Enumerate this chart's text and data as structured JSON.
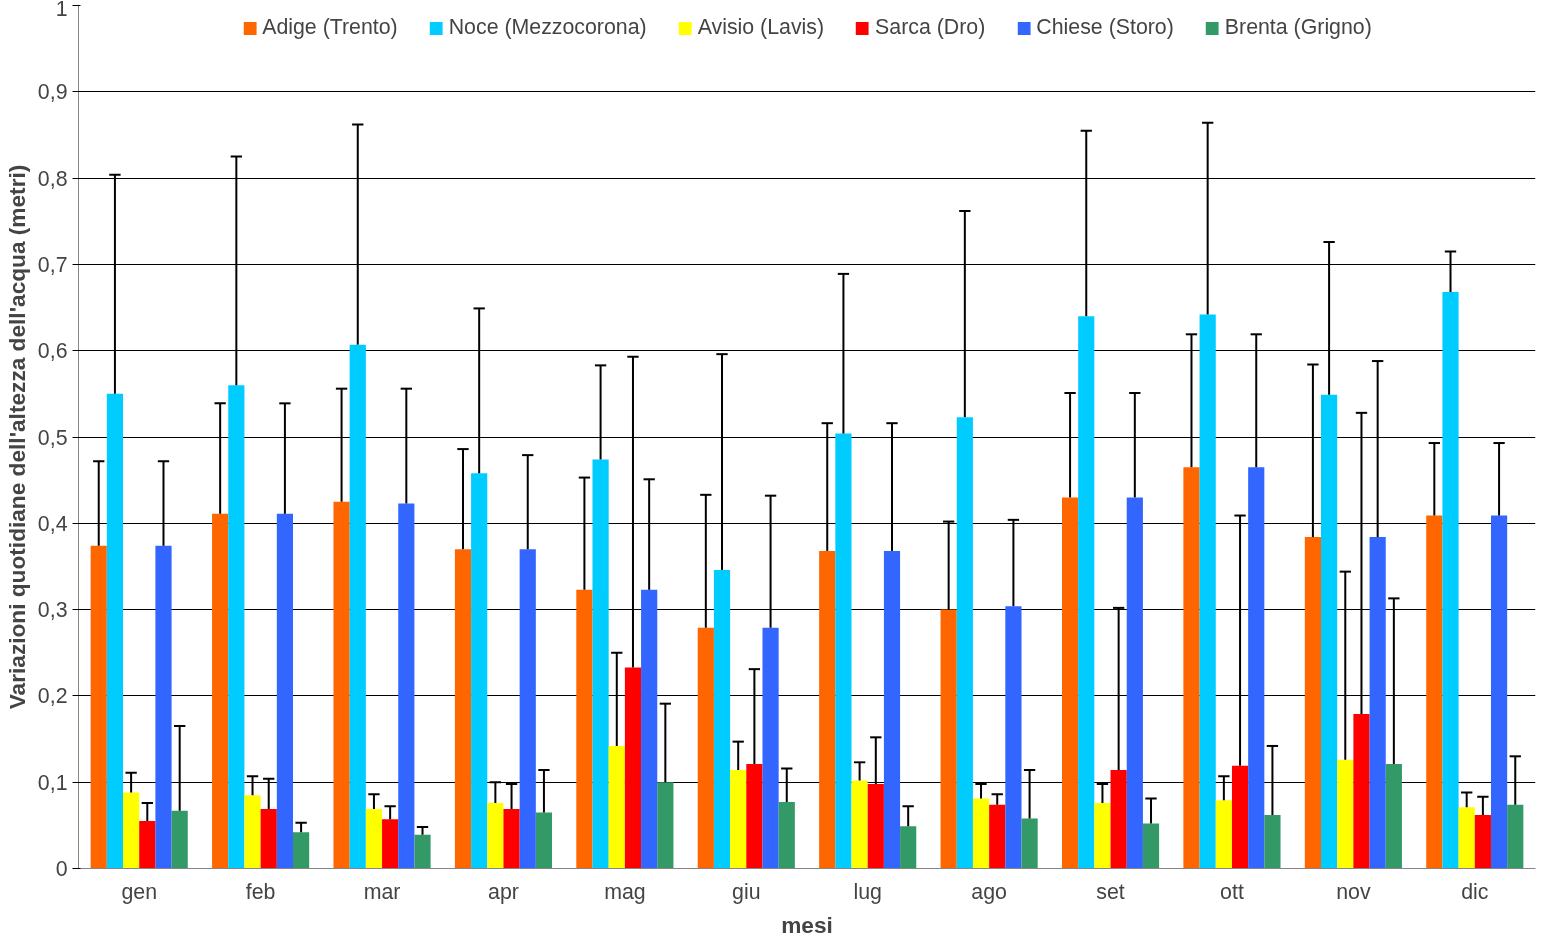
{
  "chart_data": {
    "type": "bar",
    "xlabel": "mesi",
    "ylabel": "Variazioni quotidiane dell'altezza dell'acqua (metri)",
    "categories": [
      "gen",
      "feb",
      "mar",
      "apr",
      "mag",
      "giu",
      "lug",
      "ago",
      "set",
      "ott",
      "nov",
      "dic"
    ],
    "ylim": [
      0,
      1
    ],
    "yticks": [
      0,
      {
        "value": 0.1,
        "label": "0,1"
      },
      {
        "value": 0.2,
        "label": "0,2"
      },
      {
        "value": 0.3,
        "label": "0,3"
      },
      {
        "value": 0.4,
        "label": "0,4"
      },
      {
        "value": 0.5,
        "label": "0,5"
      },
      {
        "value": 0.6,
        "label": "0,6"
      },
      {
        "value": 0.7,
        "label": "0,7"
      },
      {
        "value": 0.8,
        "label": "0,8"
      },
      {
        "value": 0.9,
        "label": "0,9"
      },
      1
    ],
    "grid": "y",
    "legend": "top",
    "series": [
      {
        "name": "Adige (Trento)",
        "color": "#ff6600",
        "values": [
          0.374,
          0.411,
          0.425,
          0.37,
          0.323,
          0.279,
          0.368,
          0.3,
          0.43,
          0.465,
          0.384,
          0.409
        ],
        "errors": [
          [
            0.374,
            0.472
          ],
          [
            0.411,
            0.539
          ],
          [
            0.425,
            0.556
          ],
          [
            0.37,
            0.486
          ],
          [
            0.323,
            0.453
          ],
          [
            0.279,
            0.433
          ],
          [
            0.368,
            0.516
          ],
          [
            0.3,
            0.402
          ],
          [
            0.43,
            0.551
          ],
          [
            0.465,
            0.619
          ],
          [
            0.384,
            0.584
          ],
          [
            0.409,
            0.493
          ]
        ]
      },
      {
        "name": "Noce (Mezzocorona)",
        "color": "#00ccff",
        "values": [
          0.55,
          0.56,
          0.607,
          0.458,
          0.474,
          0.346,
          0.504,
          0.523,
          0.64,
          0.642,
          0.549,
          0.668
        ],
        "errors": [
          [
            0.55,
            0.804
          ],
          [
            0.56,
            0.825
          ],
          [
            0.607,
            0.862
          ],
          [
            0.458,
            0.649
          ],
          [
            0.474,
            0.583
          ],
          [
            0.346,
            0.596
          ],
          [
            0.504,
            0.689
          ],
          [
            0.523,
            0.762
          ],
          [
            0.64,
            0.855
          ],
          [
            0.642,
            0.864
          ],
          [
            0.549,
            0.726
          ],
          [
            0.668,
            0.715
          ]
        ]
      },
      {
        "name": "Avisio (Lavis)",
        "color": "#ffff00",
        "values": [
          0.088,
          0.085,
          0.069,
          0.076,
          0.142,
          0.114,
          0.102,
          0.081,
          0.076,
          0.079,
          0.126,
          0.071
        ],
        "errors": [
          [
            0.088,
            0.111
          ],
          [
            0.085,
            0.107
          ],
          [
            0.069,
            0.086
          ],
          [
            0.076,
            0.1
          ],
          [
            0.142,
            0.25
          ],
          [
            0.114,
            0.147
          ],
          [
            0.102,
            0.123
          ],
          [
            0.081,
            0.098
          ],
          [
            0.076,
            0.098
          ],
          [
            0.079,
            0.107
          ],
          [
            0.126,
            0.344
          ],
          [
            0.071,
            0.088
          ]
        ]
      },
      {
        "name": "Sarca (Dro)",
        "color": "#ff0000",
        "values": [
          0.055,
          0.069,
          0.057,
          0.069,
          0.233,
          0.121,
          0.098,
          0.074,
          0.114,
          0.119,
          0.179,
          0.062
        ],
        "errors": [
          [
            0.055,
            0.076
          ],
          [
            0.069,
            0.104
          ],
          [
            0.057,
            0.072
          ],
          [
            0.069,
            0.098
          ],
          [
            0.233,
            0.593
          ],
          [
            0.121,
            0.231
          ],
          [
            0.098,
            0.152
          ],
          [
            0.074,
            0.086
          ],
          [
            0.114,
            0.302
          ],
          [
            0.119,
            0.409
          ],
          [
            0.179,
            0.528
          ],
          [
            0.062,
            0.083
          ]
        ]
      },
      {
        "name": "Chiese (Storo)",
        "color": "#3366ff",
        "values": [
          0.374,
          0.411,
          0.423,
          0.37,
          0.323,
          0.279,
          0.368,
          0.304,
          0.43,
          0.465,
          0.384,
          0.409
        ],
        "errors": [
          [
            0.374,
            0.472
          ],
          [
            0.411,
            0.539
          ],
          [
            0.423,
            0.556
          ],
          [
            0.37,
            0.479
          ],
          [
            0.323,
            0.451
          ],
          [
            0.279,
            0.432
          ],
          [
            0.368,
            0.516
          ],
          [
            0.304,
            0.404
          ],
          [
            0.43,
            0.551
          ],
          [
            0.465,
            0.619
          ],
          [
            0.384,
            0.588
          ],
          [
            0.409,
            0.493
          ]
        ]
      },
      {
        "name": "Brenta (Grigno)",
        "color": "#339966",
        "values": [
          0.067,
          0.042,
          0.039,
          0.065,
          0.1,
          0.077,
          0.049,
          0.058,
          0.052,
          0.062,
          0.121,
          0.074
        ],
        "errors": [
          [
            0.067,
            0.165
          ],
          [
            0.042,
            0.053
          ],
          [
            0.039,
            0.048
          ],
          [
            0.065,
            0.114
          ],
          [
            0.1,
            0.191
          ],
          [
            0.077,
            0.116
          ],
          [
            0.049,
            0.072
          ],
          [
            0.058,
            0.114
          ],
          [
            0.052,
            0.081
          ],
          [
            0.062,
            0.142
          ],
          [
            0.121,
            0.313
          ],
          [
            0.074,
            0.13
          ]
        ]
      }
    ]
  }
}
